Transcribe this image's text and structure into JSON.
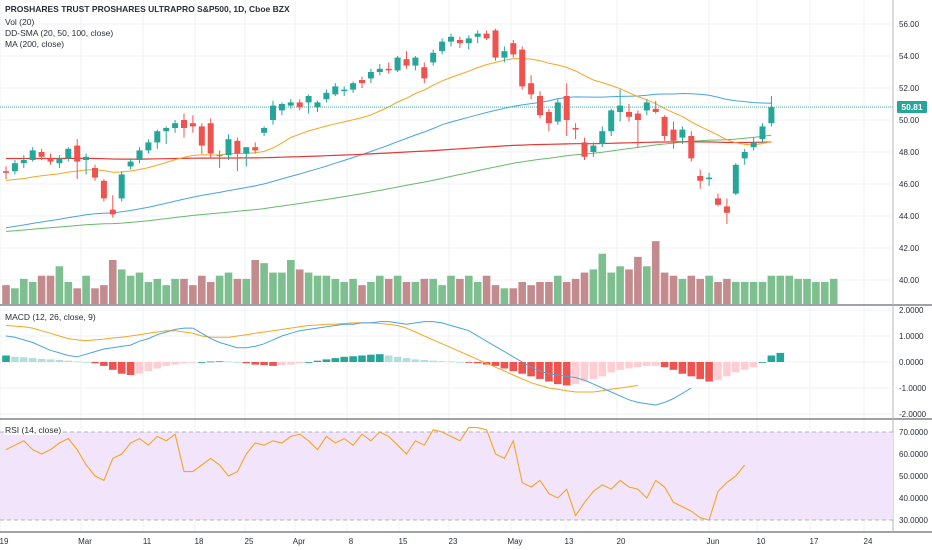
{
  "header": {
    "title": "PROSHARES TRUST PROSHARES ULTRAPRO S&P500, 1D, Cboe BZX",
    "indicators": [
      "Vol (20)",
      "DD-SMA (20, 50, 100, close)",
      "MA (200, close)"
    ],
    "macd_label": "MACD (12, 26, close, 9)",
    "rsi_label": "RSI (14, close)",
    "last_price": "50.81"
  },
  "colors": {
    "up": "#26a69a",
    "down": "#ef5350",
    "vol_up": "#7dbf8e",
    "vol_down": "#c48b8f",
    "sma20": "#f5a623",
    "sma50": "#4aa3df",
    "sma100": "#66bb6a",
    "ma200": "#e53935",
    "macd_line": "#4aa3df",
    "signal_line": "#f5a623",
    "rsi_line": "#f5a623",
    "rsi_band": "#f1e4fb",
    "grid": "#eef0f3"
  },
  "chart_data": [
    {
      "type": "candlestick",
      "title": "PROSHARES TRUST PROSHARES ULTRAPRO S&P500, 1D, Cboe BZX",
      "ylim": [
        38.5,
        57.5
      ],
      "y_ticks": [
        "56.00",
        "54.00",
        "52.00",
        "50.00",
        "48.00",
        "46.00",
        "44.00",
        "42.00",
        "40.00"
      ],
      "x_ticks": [
        "19",
        "Mar",
        "11",
        "18",
        "25",
        "Apr",
        "8",
        "15",
        "23",
        "May",
        "13",
        "20",
        "Jun",
        "10",
        "17",
        "24"
      ],
      "candles": [
        {
          "o": 46.8,
          "h": 47.1,
          "l": 46.3,
          "c": 46.7
        },
        {
          "o": 46.8,
          "h": 47.5,
          "l": 46.6,
          "c": 47.3
        },
        {
          "o": 47.3,
          "h": 47.8,
          "l": 47.0,
          "c": 47.5
        },
        {
          "o": 47.5,
          "h": 48.3,
          "l": 47.4,
          "c": 48.1
        },
        {
          "o": 48.0,
          "h": 48.2,
          "l": 47.5,
          "c": 47.7
        },
        {
          "o": 47.6,
          "h": 47.9,
          "l": 47.2,
          "c": 47.4
        },
        {
          "o": 47.3,
          "h": 47.8,
          "l": 47.0,
          "c": 47.6
        },
        {
          "o": 47.6,
          "h": 48.3,
          "l": 47.4,
          "c": 48.2
        },
        {
          "o": 48.4,
          "h": 48.8,
          "l": 46.3,
          "c": 47.4
        },
        {
          "o": 47.5,
          "h": 47.9,
          "l": 46.6,
          "c": 47.7
        },
        {
          "o": 47.0,
          "h": 47.2,
          "l": 46.2,
          "c": 46.4
        },
        {
          "o": 46.2,
          "h": 46.3,
          "l": 44.9,
          "c": 45.1
        },
        {
          "o": 44.4,
          "h": 45.3,
          "l": 43.9,
          "c": 44.1
        },
        {
          "o": 45.1,
          "h": 46.8,
          "l": 44.9,
          "c": 46.6
        },
        {
          "o": 47.1,
          "h": 47.6,
          "l": 46.9,
          "c": 47.4
        },
        {
          "o": 47.5,
          "h": 48.3,
          "l": 47.3,
          "c": 48.1
        },
        {
          "o": 48.1,
          "h": 48.8,
          "l": 47.9,
          "c": 48.6
        },
        {
          "o": 48.6,
          "h": 49.4,
          "l": 48.2,
          "c": 49.3
        },
        {
          "o": 49.3,
          "h": 49.6,
          "l": 48.5,
          "c": 49.5
        },
        {
          "o": 49.5,
          "h": 50.0,
          "l": 49.2,
          "c": 49.8
        },
        {
          "o": 50.0,
          "h": 50.4,
          "l": 48.9,
          "c": 49.5
        },
        {
          "o": 49.8,
          "h": 50.3,
          "l": 49.2,
          "c": 49.6
        },
        {
          "o": 49.6,
          "h": 49.8,
          "l": 47.9,
          "c": 48.4
        },
        {
          "o": 49.8,
          "h": 50.1,
          "l": 47.6,
          "c": 47.9
        },
        {
          "o": 47.8,
          "h": 48.1,
          "l": 47.0,
          "c": 47.8
        },
        {
          "o": 47.8,
          "h": 49.1,
          "l": 47.5,
          "c": 48.8
        },
        {
          "o": 48.7,
          "h": 48.9,
          "l": 46.8,
          "c": 47.9
        },
        {
          "o": 47.9,
          "h": 48.3,
          "l": 47.1,
          "c": 48.3
        },
        {
          "o": 48.3,
          "h": 48.6,
          "l": 47.9,
          "c": 48.1
        },
        {
          "o": 49.2,
          "h": 49.6,
          "l": 49.0,
          "c": 49.5
        },
        {
          "o": 50.0,
          "h": 51.2,
          "l": 49.7,
          "c": 50.9
        },
        {
          "o": 50.6,
          "h": 51.1,
          "l": 50.3,
          "c": 51.0
        },
        {
          "o": 50.9,
          "h": 51.3,
          "l": 50.7,
          "c": 51.1
        },
        {
          "o": 51.1,
          "h": 51.3,
          "l": 50.6,
          "c": 50.8
        },
        {
          "o": 51.1,
          "h": 51.6,
          "l": 50.4,
          "c": 51.5
        },
        {
          "o": 50.8,
          "h": 51.2,
          "l": 50.5,
          "c": 51.1
        },
        {
          "o": 51.3,
          "h": 51.9,
          "l": 51.1,
          "c": 51.7
        },
        {
          "o": 51.6,
          "h": 52.3,
          "l": 51.5,
          "c": 52.1
        },
        {
          "o": 51.8,
          "h": 52.1,
          "l": 51.5,
          "c": 51.9
        },
        {
          "o": 51.9,
          "h": 52.4,
          "l": 51.7,
          "c": 52.3
        },
        {
          "o": 52.5,
          "h": 52.7,
          "l": 52.0,
          "c": 52.3
        },
        {
          "o": 52.6,
          "h": 53.2,
          "l": 52.3,
          "c": 53.0
        },
        {
          "o": 53.0,
          "h": 53.5,
          "l": 52.8,
          "c": 53.2
        },
        {
          "o": 53.2,
          "h": 53.6,
          "l": 52.9,
          "c": 53.1
        },
        {
          "o": 53.1,
          "h": 54.0,
          "l": 53.0,
          "c": 53.9
        },
        {
          "o": 53.8,
          "h": 54.3,
          "l": 53.2,
          "c": 53.4
        },
        {
          "o": 53.4,
          "h": 54.0,
          "l": 53.1,
          "c": 53.9
        },
        {
          "o": 53.3,
          "h": 53.6,
          "l": 52.3,
          "c": 52.6
        },
        {
          "o": 53.6,
          "h": 54.4,
          "l": 53.4,
          "c": 54.2
        },
        {
          "o": 54.3,
          "h": 55.1,
          "l": 54.1,
          "c": 54.9
        },
        {
          "o": 54.9,
          "h": 55.4,
          "l": 54.6,
          "c": 55.2
        },
        {
          "o": 55.0,
          "h": 55.2,
          "l": 54.5,
          "c": 54.8
        },
        {
          "o": 54.8,
          "h": 55.3,
          "l": 54.4,
          "c": 55.1
        },
        {
          "o": 55.2,
          "h": 55.6,
          "l": 54.8,
          "c": 55.4
        },
        {
          "o": 55.4,
          "h": 55.6,
          "l": 55.0,
          "c": 55.1
        },
        {
          "o": 55.6,
          "h": 55.7,
          "l": 53.7,
          "c": 53.9
        },
        {
          "o": 53.9,
          "h": 54.6,
          "l": 53.6,
          "c": 54.3
        },
        {
          "o": 54.8,
          "h": 55.0,
          "l": 53.9,
          "c": 54.1
        },
        {
          "o": 54.4,
          "h": 54.6,
          "l": 51.9,
          "c": 52.1
        },
        {
          "o": 52.3,
          "h": 52.8,
          "l": 51.3,
          "c": 51.6
        },
        {
          "o": 51.5,
          "h": 51.8,
          "l": 50.1,
          "c": 50.3
        },
        {
          "o": 50.5,
          "h": 50.7,
          "l": 49.3,
          "c": 49.8
        },
        {
          "o": 49.9,
          "h": 51.3,
          "l": 49.7,
          "c": 51.1
        },
        {
          "o": 51.5,
          "h": 52.3,
          "l": 49.0,
          "c": 50.0
        },
        {
          "o": 49.5,
          "h": 49.8,
          "l": 48.8,
          "c": 49.4
        },
        {
          "o": 48.6,
          "h": 48.9,
          "l": 47.5,
          "c": 47.7
        },
        {
          "o": 48.0,
          "h": 48.6,
          "l": 47.7,
          "c": 48.4
        },
        {
          "o": 48.5,
          "h": 49.6,
          "l": 48.3,
          "c": 49.3
        },
        {
          "o": 49.3,
          "h": 50.7,
          "l": 49.0,
          "c": 50.6
        },
        {
          "o": 50.5,
          "h": 51.9,
          "l": 49.9,
          "c": 50.9
        },
        {
          "o": 50.5,
          "h": 51.0,
          "l": 49.9,
          "c": 50.2
        },
        {
          "o": 50.4,
          "h": 50.6,
          "l": 48.3,
          "c": 50.0
        },
        {
          "o": 50.6,
          "h": 51.3,
          "l": 50.3,
          "c": 51.1
        },
        {
          "o": 50.7,
          "h": 51.2,
          "l": 50.4,
          "c": 50.5
        },
        {
          "o": 50.2,
          "h": 50.3,
          "l": 48.7,
          "c": 49.0
        },
        {
          "o": 49.4,
          "h": 49.9,
          "l": 48.2,
          "c": 48.7
        },
        {
          "o": 48.9,
          "h": 49.6,
          "l": 48.5,
          "c": 49.4
        },
        {
          "o": 49.0,
          "h": 49.3,
          "l": 47.4,
          "c": 47.6
        },
        {
          "o": 46.5,
          "h": 46.9,
          "l": 45.7,
          "c": 46.2
        },
        {
          "o": 46.3,
          "h": 46.7,
          "l": 45.9,
          "c": 46.4
        },
        {
          "o": 45.1,
          "h": 45.4,
          "l": 44.6,
          "c": 44.7
        },
        {
          "o": 44.6,
          "h": 45.1,
          "l": 43.5,
          "c": 44.2
        },
        {
          "o": 45.4,
          "h": 47.3,
          "l": 45.3,
          "c": 47.2
        },
        {
          "o": 47.6,
          "h": 48.2,
          "l": 47.2,
          "c": 48.0
        },
        {
          "o": 48.3,
          "h": 48.9,
          "l": 48.1,
          "c": 48.6
        },
        {
          "o": 48.8,
          "h": 49.8,
          "l": 48.6,
          "c": 49.6
        },
        {
          "o": 49.8,
          "h": 51.5,
          "l": 49.6,
          "c": 50.8
        }
      ],
      "last_value": 50.81
    },
    {
      "type": "bar",
      "title": "Vol (20)",
      "values": [
        6,
        5,
        8,
        7,
        9,
        9,
        12,
        7,
        5,
        9,
        5,
        6,
        14,
        11,
        9,
        10,
        7,
        8,
        6,
        8,
        8,
        6,
        9,
        7,
        9,
        10,
        8,
        8,
        14,
        13,
        10,
        10,
        14,
        11,
        10,
        9,
        9,
        8,
        7,
        8,
        6,
        7,
        9,
        8,
        9,
        7,
        7,
        8,
        8,
        6,
        9,
        8,
        9,
        7,
        9,
        6,
        5,
        5,
        7,
        6,
        7,
        7,
        9,
        7,
        8,
        10,
        11,
        16,
        10,
        12,
        11,
        15,
        12,
        20,
        10,
        9,
        8,
        9,
        8,
        9,
        7,
        8,
        7,
        7,
        7,
        7,
        9,
        9,
        9,
        8,
        8,
        7,
        7,
        8
      ],
      "ylim": [
        0,
        21
      ]
    },
    {
      "type": "histogram+line",
      "title": "MACD (12, 26, close, 9)",
      "ylim": [
        -2.15,
        2.15
      ],
      "y_ticks": [
        "2.0000",
        "1.0000",
        "0.0000",
        "-1.0000",
        "-2.0000"
      ],
      "histogram": [
        0.25,
        0.2,
        0.18,
        0.15,
        0.12,
        0.1,
        0.08,
        0.05,
        0.02,
        0.0,
        -0.05,
        -0.15,
        -0.3,
        -0.45,
        -0.5,
        -0.45,
        -0.35,
        -0.25,
        -0.15,
        -0.1,
        -0.05,
        -0.02,
        0.0,
        0.02,
        0.03,
        0.02,
        0.0,
        -0.05,
        -0.1,
        -0.12,
        -0.15,
        -0.12,
        -0.1,
        -0.05,
        0.0,
        0.05,
        0.1,
        0.15,
        0.2,
        0.22,
        0.25,
        0.28,
        0.3,
        0.25,
        0.2,
        0.15,
        0.1,
        0.08,
        0.05,
        0.03,
        0.02,
        0.0,
        -0.02,
        -0.05,
        -0.1,
        -0.15,
        -0.25,
        -0.35,
        -0.45,
        -0.55,
        -0.65,
        -0.75,
        -0.85,
        -0.9,
        -0.85,
        -0.75,
        -0.65,
        -0.55,
        -0.4,
        -0.3,
        -0.25,
        -0.2,
        -0.15,
        -0.15,
        -0.2,
        -0.3,
        -0.45,
        -0.55,
        -0.65,
        -0.75,
        -0.7,
        -0.55,
        -0.4,
        -0.3,
        -0.2,
        0.0,
        0.25,
        0.35
      ],
      "macd": [
        1.0,
        0.95,
        0.85,
        0.75,
        0.6,
        0.45,
        0.35,
        0.25,
        0.2,
        0.3,
        0.4,
        0.5,
        0.55,
        0.6,
        0.65,
        0.8,
        0.9,
        1.05,
        1.15,
        1.25,
        1.3,
        1.3,
        1.1,
        0.9,
        0.75,
        0.65,
        0.55,
        0.55,
        0.6,
        0.7,
        0.85,
        1.0,
        1.1,
        1.2,
        1.25,
        1.3,
        1.35,
        1.4,
        1.45,
        1.45,
        1.5,
        1.5,
        1.55,
        1.55,
        1.5,
        1.45,
        1.5,
        1.55,
        1.55,
        1.5,
        1.4,
        1.3,
        1.2,
        1.0,
        0.8,
        0.6,
        0.4,
        0.2,
        0.0,
        -0.2,
        -0.35,
        -0.45,
        -0.5,
        -0.55,
        -0.6,
        -0.7,
        -0.85,
        -1.0,
        -1.15,
        -1.3,
        -1.45,
        -1.55,
        -1.6,
        -1.65,
        -1.55,
        -1.4,
        -1.2,
        -1.0
      ],
      "signal": [
        1.4,
        1.38,
        1.35,
        1.3,
        1.2,
        1.1,
        1.0,
        0.9,
        0.85,
        0.82,
        0.85,
        0.88,
        0.92,
        0.95,
        1.0,
        1.05,
        1.1,
        1.15,
        1.2,
        1.2,
        1.15,
        1.1,
        1.0,
        0.95,
        0.95,
        0.95,
        1.0,
        1.05,
        1.1,
        1.15,
        1.2,
        1.25,
        1.3,
        1.35,
        1.4,
        1.42,
        1.45,
        1.45,
        1.48,
        1.5,
        1.5,
        1.5,
        1.48,
        1.45,
        1.4,
        1.3,
        1.15,
        1.0,
        0.85,
        0.7,
        0.55,
        0.4,
        0.25,
        0.1,
        -0.05,
        -0.2,
        -0.35,
        -0.5,
        -0.65,
        -0.8,
        -0.9,
        -1.0,
        -1.05,
        -1.1,
        -1.15,
        -1.15,
        -1.15,
        -1.1,
        -1.05,
        -1.0,
        -0.95,
        -0.9
      ]
    },
    {
      "type": "line",
      "title": "RSI (14, close)",
      "ylim": [
        25,
        75
      ],
      "y_ticks": [
        "70.0000",
        "60.0000",
        "50.0000",
        "40.0000",
        "30.0000"
      ],
      "band": [
        30,
        70
      ],
      "values": [
        62,
        64,
        66,
        62,
        60,
        62,
        65,
        67,
        62,
        55,
        50,
        48,
        58,
        60,
        65,
        67,
        64,
        68,
        66,
        69,
        52,
        52,
        55,
        58,
        55,
        50,
        52,
        60,
        65,
        64,
        66,
        65,
        68,
        69,
        66,
        62,
        68,
        65,
        67,
        64,
        69,
        66,
        70,
        68,
        64,
        60,
        66,
        64,
        71,
        70,
        68,
        66,
        72,
        72,
        71,
        60,
        58,
        66,
        47,
        45,
        48,
        42,
        40,
        44,
        32,
        38,
        43,
        46,
        44,
        48,
        45,
        44,
        40,
        48,
        45,
        38,
        36,
        34,
        31,
        30,
        43,
        47,
        50,
        55
      ]
    }
  ]
}
